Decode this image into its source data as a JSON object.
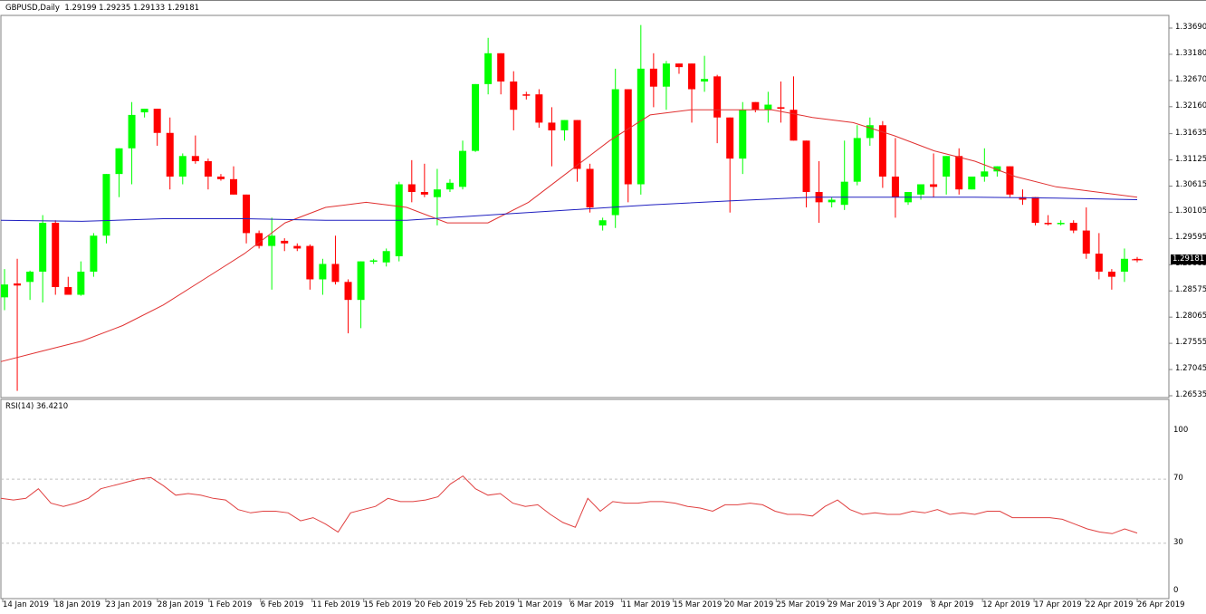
{
  "header": {
    "symbol_label": "GBPUSD,Daily",
    "ohlc_label": "1.29199 1.29235 1.29133 1.29181"
  },
  "rsi_panel": {
    "label": "RSI(14) 36.4210"
  },
  "current_price_label": "1.29181",
  "colors": {
    "bull": "#00ff00",
    "bear": "#ff0000",
    "ma_fast": "#e03030",
    "ma_slow": "#2020c0",
    "rsi_line": "#e04040",
    "level_lines": "#c0c0c0",
    "axis": "#808080"
  },
  "chart_data": [
    {
      "type": "candlestick",
      "title": "GBPUSD,Daily",
      "ylim": [
        1.26535,
        1.3369
      ],
      "y_ticks": [
        "1.33690",
        "1.33180",
        "1.32670",
        "1.32160",
        "1.31635",
        "1.31125",
        "1.30615",
        "1.30105",
        "1.29595",
        "1.29085",
        "1.28575",
        "1.28065",
        "1.27555",
        "1.27045",
        "1.26535"
      ],
      "x_ticks": [
        "14 Jan 2019",
        "18 Jan 2019",
        "23 Jan 2019",
        "28 Jan 2019",
        "1 Feb 2019",
        "6 Feb 2019",
        "11 Feb 2019",
        "15 Feb 2019",
        "20 Feb 2019",
        "25 Feb 2019",
        "1 Mar 2019",
        "6 Mar 2019",
        "11 Mar 2019",
        "15 Mar 2019",
        "20 Mar 2019",
        "25 Mar 2019",
        "29 Mar 2019",
        "3 Apr 2019",
        "8 Apr 2019",
        "12 Apr 2019",
        "17 Apr 2019",
        "22 Apr 2019",
        "26 Apr 2019"
      ],
      "last_ohlc": {
        "open": 1.29199,
        "high": 1.29235,
        "low": 1.29133,
        "close": 1.29181
      },
      "candles_ohlc": [
        [
          1.2845,
          1.29,
          1.282,
          1.287
        ],
        [
          1.2872,
          1.292,
          1.2663,
          1.2868
        ],
        [
          1.2875,
          1.2897,
          1.284,
          1.2895
        ],
        [
          1.2895,
          1.3005,
          1.2835,
          1.299
        ],
        [
          1.299,
          1.2995,
          1.285,
          1.2865
        ],
        [
          1.2865,
          1.2885,
          1.2855,
          1.285
        ],
        [
          1.285,
          1.2915,
          1.2848,
          1.2895
        ],
        [
          1.2895,
          1.297,
          1.2885,
          1.2965
        ],
        [
          1.2965,
          1.3085,
          1.295,
          1.3085
        ],
        [
          1.3085,
          1.3135,
          1.304,
          1.3135
        ],
        [
          1.3135,
          1.3225,
          1.3065,
          1.32
        ],
        [
          1.3205,
          1.321,
          1.3195,
          1.3212
        ],
        [
          1.3212,
          1.3185,
          1.314,
          1.3165
        ],
        [
          1.3165,
          1.3195,
          1.3055,
          1.308
        ],
        [
          1.308,
          1.3125,
          1.3065,
          1.312
        ],
        [
          1.312,
          1.316,
          1.3105,
          1.311
        ],
        [
          1.311,
          1.3115,
          1.3055,
          1.308
        ],
        [
          1.308,
          1.3085,
          1.3072,
          1.3075
        ],
        [
          1.3075,
          1.31,
          1.3055,
          1.3045
        ],
        [
          1.3045,
          1.3035,
          1.295,
          1.297
        ],
        [
          1.297,
          1.2975,
          1.294,
          1.2945
        ],
        [
          1.2945,
          1.3,
          1.286,
          1.2965
        ],
        [
          1.2955,
          1.296,
          1.2935,
          1.295
        ],
        [
          1.2945,
          1.295,
          1.2935,
          1.294
        ],
        [
          1.2945,
          1.2948,
          1.286,
          1.288
        ],
        [
          1.288,
          1.292,
          1.285,
          1.291
        ],
        [
          1.291,
          1.2965,
          1.287,
          1.2875
        ],
        [
          1.2875,
          1.288,
          1.2775,
          1.284
        ],
        [
          1.284,
          1.291,
          1.2785,
          1.2915
        ],
        [
          1.2915,
          1.292,
          1.291,
          1.2917
        ],
        [
          1.2913,
          1.294,
          1.2905,
          1.2935
        ],
        [
          1.2925,
          1.307,
          1.2915,
          1.3065
        ],
        [
          1.3065,
          1.3112,
          1.303,
          1.305
        ],
        [
          1.305,
          1.3105,
          1.304,
          1.3045
        ],
        [
          1.304,
          1.3095,
          1.2985,
          1.3055
        ],
        [
          1.3055,
          1.3075,
          1.305,
          1.3068
        ],
        [
          1.306,
          1.315,
          1.3055,
          1.313
        ],
        [
          1.313,
          1.3225,
          1.3128,
          1.326
        ],
        [
          1.326,
          1.335,
          1.324,
          1.332
        ],
        [
          1.332,
          1.3318,
          1.324,
          1.3265
        ],
        [
          1.3265,
          1.3285,
          1.317,
          1.321
        ],
        [
          1.324,
          1.3245,
          1.323,
          1.3238
        ],
        [
          1.324,
          1.325,
          1.3175,
          1.3185
        ],
        [
          1.3185,
          1.3215,
          1.31,
          1.317
        ],
        [
          1.317,
          1.319,
          1.315,
          1.319
        ],
        [
          1.319,
          1.3185,
          1.307,
          1.3095
        ],
        [
          1.3095,
          1.3105,
          1.301,
          1.302
        ],
        [
          1.2985,
          1.3,
          1.2975,
          1.2995
        ],
        [
          1.3005,
          1.329,
          1.298,
          1.325
        ],
        [
          1.325,
          1.324,
          1.303,
          1.3065
        ],
        [
          1.3065,
          1.3375,
          1.3045,
          1.329
        ],
        [
          1.329,
          1.332,
          1.3215,
          1.3255
        ],
        [
          1.3255,
          1.3305,
          1.321,
          1.33
        ],
        [
          1.33,
          1.3295,
          1.328,
          1.3293
        ],
        [
          1.33,
          1.3295,
          1.3185,
          1.325
        ],
        [
          1.3265,
          1.3315,
          1.3245,
          1.327
        ],
        [
          1.3275,
          1.3278,
          1.3145,
          1.3195
        ],
        [
          1.3195,
          1.3195,
          1.301,
          1.3115
        ],
        [
          1.3115,
          1.3225,
          1.3085,
          1.321
        ],
        [
          1.3225,
          1.3215,
          1.3205,
          1.321
        ],
        [
          1.321,
          1.3245,
          1.3185,
          1.322
        ],
        [
          1.3215,
          1.3265,
          1.3185,
          1.3212
        ],
        [
          1.321,
          1.3275,
          1.316,
          1.315
        ],
        [
          1.315,
          1.314,
          1.302,
          1.305
        ],
        [
          1.305,
          1.311,
          1.299,
          1.303
        ],
        [
          1.303,
          1.304,
          1.302,
          1.3035
        ],
        [
          1.3025,
          1.315,
          1.3015,
          1.307
        ],
        [
          1.307,
          1.318,
          1.3063,
          1.3155
        ],
        [
          1.3155,
          1.3195,
          1.314,
          1.318
        ],
        [
          1.318,
          1.3188,
          1.3058,
          1.308
        ],
        [
          1.308,
          1.3155,
          1.3,
          1.304
        ],
        [
          1.303,
          1.3045,
          1.3025,
          1.305
        ],
        [
          1.3045,
          1.3062,
          1.3035,
          1.3065
        ],
        [
          1.3065,
          1.3125,
          1.304,
          1.306
        ],
        [
          1.308,
          1.311,
          1.3045,
          1.312
        ],
        [
          1.312,
          1.3135,
          1.3045,
          1.3055
        ],
        [
          1.3055,
          1.3065,
          1.306,
          1.308
        ],
        [
          1.308,
          1.3135,
          1.307,
          1.309
        ],
        [
          1.309,
          1.3095,
          1.308,
          1.31
        ],
        [
          1.31,
          1.31,
          1.304,
          1.3045
        ],
        [
          1.304,
          1.3055,
          1.3025,
          1.3035
        ],
        [
          1.304,
          1.304,
          1.2985,
          1.299
        ],
        [
          1.299,
          1.3005,
          1.2985,
          1.2988
        ],
        [
          1.2988,
          1.2995,
          1.2985,
          1.299
        ],
        [
          1.299,
          1.2995,
          1.297,
          1.2975
        ],
        [
          1.2975,
          1.302,
          1.292,
          1.293
        ],
        [
          1.293,
          1.297,
          1.288,
          1.2895
        ],
        [
          1.2895,
          1.29,
          1.286,
          1.2885
        ],
        [
          1.2895,
          1.294,
          1.2875,
          1.292
        ],
        [
          1.29199,
          1.29235,
          1.29133,
          1.29181
        ]
      ],
      "series": [
        {
          "name": "MA fast (red)",
          "points_y_price": [
            1.272,
            1.274,
            1.276,
            1.279,
            1.283,
            1.288,
            1.293,
            1.299,
            1.302,
            1.303,
            1.302,
            1.299,
            1.299,
            1.303,
            1.309,
            1.315,
            1.32,
            1.321,
            1.321,
            1.321,
            1.3195,
            1.3185,
            1.316,
            1.313,
            1.311,
            1.308,
            1.306,
            1.305,
            1.304
          ]
        },
        {
          "name": "MA slow (blue)",
          "points_y_price": [
            1.2995,
            1.2993,
            1.2998,
            1.2998,
            1.2995,
            1.2995,
            1.3005,
            1.3015,
            1.3025,
            1.3033,
            1.304,
            1.304,
            1.304,
            1.3038,
            1.3035
          ]
        }
      ]
    },
    {
      "type": "line",
      "title": "RSI(14) 36.4210",
      "ylim": [
        0,
        100
      ],
      "y_ticks": [
        "100",
        "70",
        "30",
        "0"
      ],
      "levels": [
        70,
        30
      ],
      "values": [
        58,
        57,
        58,
        64,
        55,
        53,
        55,
        58,
        64,
        66,
        68,
        70,
        71,
        66,
        60,
        61,
        60,
        58,
        57,
        51,
        49,
        50,
        50,
        49,
        44,
        46,
        42,
        37,
        49,
        51,
        53,
        58,
        56,
        56,
        57,
        59,
        67,
        72,
        64,
        60,
        61,
        55,
        53,
        54,
        48,
        43,
        40,
        58,
        50,
        56,
        55,
        55,
        56,
        56,
        55,
        53,
        52,
        50,
        54,
        54,
        55,
        54,
        50,
        48,
        48,
        47,
        53,
        57,
        51,
        48,
        49,
        48,
        48,
        50,
        49,
        51,
        48,
        49,
        48,
        50,
        50,
        46,
        46,
        46,
        46,
        45,
        42,
        39,
        37,
        36,
        39,
        36.4
      ]
    }
  ]
}
